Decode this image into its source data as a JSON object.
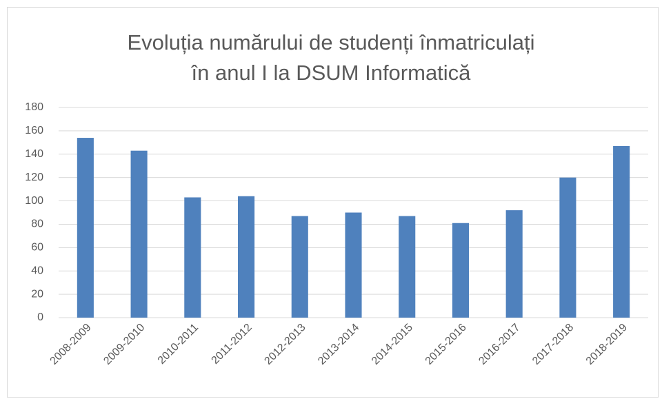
{
  "chart_data": {
    "type": "bar",
    "title": "Evoluția numărului de studenți înmatriculați în anul I la DSUM Informatică",
    "categories": [
      "2008-2009",
      "2009-2010",
      "2010-2011",
      "2011-2012",
      "2012-2013",
      "2013-2014",
      "2014-2015",
      "2015-2016",
      "2016-2017",
      "2017-2018",
      "2018-2019"
    ],
    "values": [
      154,
      143,
      103,
      104,
      87,
      90,
      87,
      81,
      92,
      120,
      147
    ],
    "color": "#4f81bd",
    "ylim": [
      0,
      180
    ],
    "yticks": [
      0,
      20,
      40,
      60,
      80,
      100,
      120,
      140,
      160,
      180
    ],
    "grid": true
  }
}
